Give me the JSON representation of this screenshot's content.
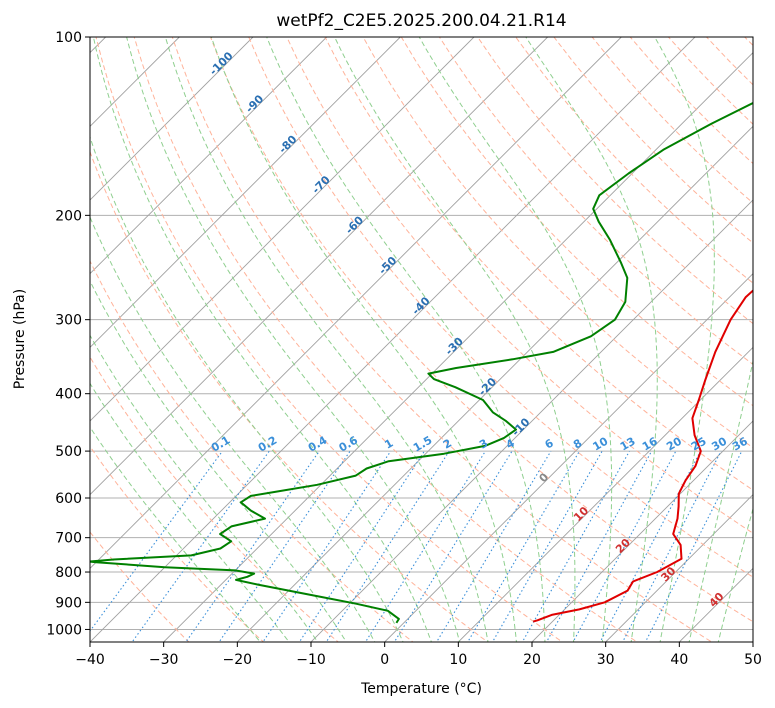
{
  "chart_data": {
    "type": "line",
    "subtype": "skew-t log-p diagram",
    "title": "wetPf2_C2E5.2025.200.04.21.R14",
    "xlabel": "Temperature (°C)",
    "ylabel": "Pressure (hPa)",
    "xlim": [
      -40,
      50
    ],
    "ylim": [
      1050,
      100
    ],
    "y_scale": "log",
    "x_ticks": [
      -40,
      -30,
      -20,
      -10,
      0,
      10,
      20,
      30,
      40,
      50
    ],
    "y_ticks": [
      100,
      200,
      300,
      400,
      500,
      600,
      700,
      800,
      900,
      1000
    ],
    "grid": true,
    "series": [
      {
        "color": "#e00000",
        "pressure": [
          970,
          965,
          945,
          925,
          900,
          860,
          830,
          800,
          760,
          720,
          690,
          650,
          620,
          590,
          560,
          530,
          500,
          470,
          440,
          410,
          380,
          340,
          300,
          275,
          260,
          245,
          220,
          190,
          165,
          145,
          130,
          120,
          110,
          100
        ],
        "temperature": [
          17.4,
          17.8,
          19.0,
          22.0,
          24.5,
          26.0,
          25.5,
          27.5,
          29.0,
          27.0,
          24.5,
          23.0,
          21.5,
          19.8,
          18.9,
          18.3,
          17.0,
          14.0,
          11.4,
          9.8,
          8.0,
          5.5,
          3.2,
          2.2,
          2.4,
          2.0,
          1.5,
          0.8,
          -0.5,
          -2.0,
          -2.2,
          -1.0,
          0.5,
          2.5
        ]
      },
      {
        "color": "#008000",
        "pressure": [
          975,
          960,
          930,
          905,
          880,
          860,
          840,
          825,
          815,
          805,
          795,
          785,
          770,
          768,
          762,
          750,
          730,
          710,
          690,
          670,
          650,
          630,
          610,
          595,
          585,
          570,
          550,
          535,
          520,
          505,
          490,
          475,
          460,
          445,
          430,
          410,
          390,
          378,
          370,
          362,
          350,
          340,
          320,
          300,
          280,
          255,
          240,
          220,
          205,
          195,
          185,
          170,
          155,
          140,
          125,
          110,
          100
        ],
        "temperature": [
          -1.0,
          -1.2,
          -3.8,
          -9.0,
          -15.0,
          -20.0,
          -25.0,
          -28.6,
          -27.5,
          -27.0,
          -30.0,
          -40.0,
          -50.0,
          -51.0,
          -48.0,
          -38.0,
          -35.0,
          -34.5,
          -37.0,
          -36.5,
          -33.0,
          -36.0,
          -38.5,
          -38.0,
          -35.0,
          -30.5,
          -26.5,
          -26.0,
          -24.0,
          -17.5,
          -13.0,
          -11.5,
          -11.0,
          -13.5,
          -16.5,
          -19.5,
          -25.0,
          -29.0,
          -30.5,
          -27.5,
          -21.0,
          -16.5,
          -13.5,
          -12.5,
          -13.5,
          -16.5,
          -19.5,
          -24.0,
          -28.0,
          -30.5,
          -31.5,
          -30.5,
          -29.0,
          -26.0,
          -22.0,
          -19.0,
          -16.0
        ]
      }
    ],
    "dry_adiabat_labels": [
      "-100",
      "-90",
      "-80",
      "-70",
      "-60",
      "-50",
      "-40",
      "-30",
      "-20",
      "-10",
      "0",
      "10",
      "20",
      "30",
      "40"
    ],
    "mixing_ratio_labels": [
      "0.1",
      "0.2",
      "0.4",
      "0.6",
      "1",
      "1.5",
      "2",
      "3",
      "4",
      "6",
      "8",
      "10",
      "13",
      "16",
      "20",
      "25",
      "30",
      "36"
    ],
    "colors": {
      "isotherm": "#a0a0a0",
      "dry_adiabat": "#ffb39a",
      "moist_adiabat": "#8fcf8f",
      "mixing_ratio": "#3a8fd9",
      "cold_label": "#2a6fb2",
      "warm_label": "#d03030",
      "zero_label": "#888888"
    }
  }
}
